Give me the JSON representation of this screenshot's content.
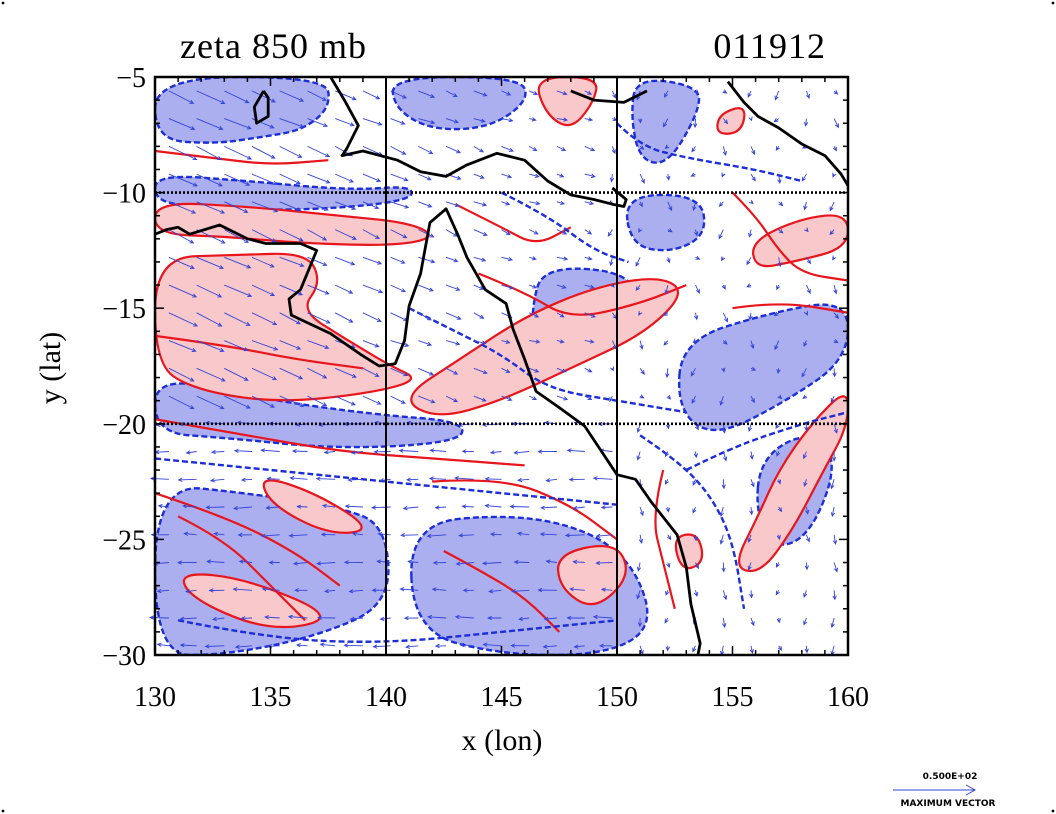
{
  "map": {
    "title": "zeta 850 mb",
    "timestamp": "011912",
    "xlabel": "x (lon)",
    "ylabel": "y (lat)",
    "xlim": [
      130,
      160
    ],
    "ylim": [
      -30,
      -5
    ],
    "xticks": [
      {
        "value": 130,
        "label": "130"
      },
      {
        "value": 135,
        "label": "135"
      },
      {
        "value": 140,
        "label": "140"
      },
      {
        "value": 145,
        "label": "145"
      },
      {
        "value": 150,
        "label": "150"
      },
      {
        "value": 155,
        "label": "155"
      },
      {
        "value": 160,
        "label": "160"
      }
    ],
    "yticks": [
      {
        "value": -5,
        "label": "−5"
      },
      {
        "value": -10,
        "label": "−10"
      },
      {
        "value": -15,
        "label": "−15"
      },
      {
        "value": -20,
        "label": "−20"
      },
      {
        "value": -25,
        "label": "−25"
      },
      {
        "value": -30,
        "label": "−30"
      }
    ],
    "grid_lon": [
      140,
      150
    ],
    "grid_lat": [
      -10,
      -20
    ],
    "legend": {
      "value_label": "0.500E+02",
      "label": "MAXIMUM VECTOR"
    },
    "colors": {
      "negative_fill": "#abaff0",
      "positive_fill": "#f8c8ca",
      "positive_contour": "#e8161c",
      "negative_contour": "#1c2ed8",
      "vector": "#3343d9",
      "coastline": "#000000"
    },
    "coastlines": [
      [
        [
          130,
          -11.8
        ],
        [
          130.5,
          -11.6
        ],
        [
          131,
          -11.5
        ],
        [
          131.5,
          -11.8
        ],
        [
          132.8,
          -11.4
        ],
        [
          134,
          -12
        ],
        [
          134.8,
          -12.2
        ],
        [
          136.3,
          -12.2
        ],
        [
          137,
          -12.5
        ],
        [
          136.3,
          -14.2
        ],
        [
          135.8,
          -14.6
        ],
        [
          135.9,
          -15.3
        ],
        [
          137.6,
          -16.1
        ],
        [
          138.9,
          -17
        ],
        [
          139.7,
          -17.5
        ],
        [
          140.4,
          -17.4
        ],
        [
          140.8,
          -16.4
        ],
        [
          141,
          -14.9
        ],
        [
          141.5,
          -13.5
        ],
        [
          141.9,
          -11.3
        ],
        [
          142.6,
          -10.7
        ],
        [
          143.1,
          -11.8
        ],
        [
          143.5,
          -12.8
        ],
        [
          144.3,
          -14.2
        ],
        [
          145.2,
          -14.8
        ],
        [
          145.5,
          -15.9
        ],
        [
          146,
          -17.2
        ],
        [
          146.5,
          -18.6
        ],
        [
          147.5,
          -19.3
        ],
        [
          148.6,
          -20.1
        ],
        [
          149.2,
          -21
        ],
        [
          150,
          -22.2
        ],
        [
          150.8,
          -22.4
        ],
        [
          151.5,
          -23.4
        ],
        [
          152.6,
          -24.8
        ],
        [
          153,
          -26.2
        ],
        [
          153.2,
          -27.8
        ],
        [
          153.6,
          -29.5
        ],
        [
          153.5,
          -30
        ]
      ],
      [
        [
          134.7,
          -5.6
        ],
        [
          134.3,
          -6.3
        ],
        [
          134.4,
          -7
        ],
        [
          134.9,
          -6.7
        ],
        [
          134.9,
          -5.9
        ],
        [
          134.7,
          -5.6
        ]
      ],
      [
        [
          137.6,
          -5
        ],
        [
          138.2,
          -6
        ],
        [
          138.8,
          -7.1
        ],
        [
          138.3,
          -8.1
        ],
        [
          138.1,
          -8.4
        ],
        [
          139,
          -8.2
        ],
        [
          140.5,
          -8.6
        ],
        [
          141.5,
          -9.1
        ],
        [
          142.6,
          -9.3
        ],
        [
          143.5,
          -8.8
        ],
        [
          144.8,
          -8.3
        ],
        [
          146,
          -8.6
        ],
        [
          147,
          -9.5
        ],
        [
          148,
          -10.1
        ],
        [
          149,
          -10.3
        ],
        [
          149.8,
          -10.5
        ],
        [
          150.3,
          -10.6
        ],
        [
          150.4,
          -10.3
        ],
        [
          149.8,
          -9.8
        ]
      ],
      [
        [
          148,
          -5.6
        ],
        [
          149,
          -6
        ],
        [
          150.3,
          -6.1
        ],
        [
          151.3,
          -5.6
        ]
      ],
      [
        [
          154.8,
          -5.2
        ],
        [
          155.5,
          -6.1
        ],
        [
          156.1,
          -6.7
        ],
        [
          157,
          -7.2
        ],
        [
          158,
          -7.9
        ],
        [
          159,
          -8.4
        ],
        [
          159.7,
          -9.2
        ],
        [
          160,
          -9.7
        ]
      ]
    ],
    "negative_regions": [
      [
        [
          130,
          -5
        ],
        [
          137.4,
          -5
        ],
        [
          137.6,
          -6.3
        ],
        [
          136.4,
          -7.3
        ],
        [
          134.6,
          -7.6
        ],
        [
          132.5,
          -7.9
        ],
        [
          130,
          -7.7
        ]
      ],
      [
        [
          140.2,
          -5
        ],
        [
          145.8,
          -5
        ],
        [
          146.2,
          -6
        ],
        [
          144.5,
          -7.2
        ],
        [
          142,
          -7.3
        ],
        [
          140.4,
          -6.4
        ]
      ],
      [
        [
          130,
          -9.2
        ],
        [
          134,
          -9.5
        ],
        [
          138.5,
          -9.9
        ],
        [
          141.2,
          -9.7
        ],
        [
          141,
          -10.4
        ],
        [
          136,
          -10.8
        ],
        [
          132,
          -10.6
        ],
        [
          130,
          -10.4
        ]
      ],
      [
        [
          150.8,
          -5
        ],
        [
          153.6,
          -5.4
        ],
        [
          153.5,
          -6.6
        ],
        [
          152.2,
          -8.8
        ],
        [
          151,
          -8.6
        ],
        [
          150.6,
          -6.8
        ]
      ],
      [
        [
          150.3,
          -10.1
        ],
        [
          153.6,
          -10.1
        ],
        [
          153.9,
          -11.8
        ],
        [
          152.4,
          -12.6
        ],
        [
          150.6,
          -12.3
        ]
      ],
      [
        [
          146.8,
          -13.2
        ],
        [
          150.4,
          -13.4
        ],
        [
          151,
          -14.9
        ],
        [
          149.3,
          -16
        ],
        [
          148,
          -17.6
        ],
        [
          146.4,
          -17.1
        ],
        [
          146.3,
          -15
        ]
      ],
      [
        [
          152.8,
          -16.4
        ],
        [
          156.6,
          -15.2
        ],
        [
          160,
          -14.6
        ],
        [
          160,
          -17.2
        ],
        [
          157.2,
          -19.1
        ],
        [
          154.2,
          -20.6
        ],
        [
          152.6,
          -19.4
        ]
      ],
      [
        [
          130,
          -17.9
        ],
        [
          134.5,
          -18.9
        ],
        [
          139.5,
          -19.6
        ],
        [
          143.4,
          -19.9
        ],
        [
          143.2,
          -20.8
        ],
        [
          138,
          -21.1
        ],
        [
          133,
          -20.6
        ],
        [
          130,
          -20.4
        ]
      ],
      [
        [
          130,
          -22.6
        ],
        [
          134,
          -23
        ],
        [
          138,
          -23.6
        ],
        [
          140,
          -24.4
        ],
        [
          140.2,
          -27.8
        ],
        [
          137,
          -29.2
        ],
        [
          133,
          -30
        ],
        [
          130,
          -30
        ]
      ],
      [
        [
          141,
          -24.3
        ],
        [
          145.5,
          -23.9
        ],
        [
          148.8,
          -24.6
        ],
        [
          150.8,
          -26.2
        ],
        [
          151.6,
          -28.8
        ],
        [
          149.5,
          -30
        ],
        [
          145,
          -30
        ],
        [
          141.2,
          -29
        ]
      ],
      [
        [
          156.2,
          -21.5
        ],
        [
          158.2,
          -20.3
        ],
        [
          159.6,
          -21.5
        ],
        [
          158.5,
          -24.6
        ],
        [
          157,
          -25.5
        ],
        [
          156,
          -24
        ]
      ]
    ],
    "positive_regions": [
      [
        [
          130,
          -10.4
        ],
        [
          134,
          -10.6
        ],
        [
          138,
          -11
        ],
        [
          141,
          -11.3
        ],
        [
          142.2,
          -11.9
        ],
        [
          140.5,
          -12.3
        ],
        [
          136.5,
          -12.2
        ],
        [
          133,
          -11.9
        ],
        [
          130,
          -11.8
        ]
      ],
      [
        [
          130,
          -12.8
        ],
        [
          133.5,
          -12.7
        ],
        [
          136.6,
          -12.6
        ],
        [
          137.2,
          -13.9
        ],
        [
          136.3,
          -15.1
        ],
        [
          138.2,
          -16.3
        ],
        [
          140.2,
          -17.5
        ],
        [
          141.5,
          -18.1
        ],
        [
          139.2,
          -18.7
        ],
        [
          135.2,
          -19.1
        ],
        [
          131.6,
          -18.5
        ],
        [
          130,
          -17.4
        ]
      ],
      [
        [
          140.6,
          -18.9
        ],
        [
          143.2,
          -17.2
        ],
        [
          146.1,
          -15.3
        ],
        [
          149,
          -14.1
        ],
        [
          151.8,
          -13.6
        ],
        [
          153,
          -14.3
        ],
        [
          151.2,
          -16.1
        ],
        [
          148.2,
          -17.5
        ],
        [
          145,
          -19
        ],
        [
          142.2,
          -19.8
        ]
      ],
      [
        [
          155.8,
          -12.1
        ],
        [
          158,
          -11.1
        ],
        [
          160,
          -10.9
        ],
        [
          160,
          -12.4
        ],
        [
          157.6,
          -13
        ],
        [
          156,
          -13.3
        ]
      ],
      [
        [
          160,
          -18.4
        ],
        [
          158.4,
          -20
        ],
        [
          157,
          -22
        ],
        [
          156.1,
          -24
        ],
        [
          155,
          -26.2
        ],
        [
          156.2,
          -26.5
        ],
        [
          157.6,
          -24.6
        ],
        [
          158.9,
          -22.1
        ],
        [
          160,
          -20.1
        ]
      ],
      [
        [
          146.4,
          -5
        ],
        [
          149.2,
          -5
        ],
        [
          149,
          -6.1
        ],
        [
          148,
          -7.3
        ],
        [
          146.9,
          -6.6
        ]
      ],
      [
        [
          154.4,
          -6.6
        ],
        [
          155.6,
          -6.2
        ],
        [
          155.4,
          -7.4
        ],
        [
          154.3,
          -7.5
        ]
      ],
      [
        [
          147.4,
          -25.6
        ],
        [
          150,
          -25.1
        ],
        [
          150.6,
          -26.6
        ],
        [
          149,
          -28.1
        ],
        [
          147.5,
          -27.1
        ]
      ],
      [
        [
          131,
          -26.4
        ],
        [
          134,
          -26.7
        ],
        [
          138,
          -28.4
        ],
        [
          135,
          -29
        ],
        [
          131.6,
          -27.6
        ]
      ],
      [
        [
          152.4,
          -24.9
        ],
        [
          153.5,
          -24.7
        ],
        [
          153.8,
          -26
        ],
        [
          152.8,
          -26.4
        ]
      ],
      [
        [
          134.5,
          -22.2
        ],
        [
          137,
          -23
        ],
        [
          139.5,
          -24.6
        ],
        [
          137.5,
          -24.8
        ],
        [
          135,
          -23.5
        ]
      ]
    ],
    "positive_contours": [
      [
        [
          130,
          -16.2
        ],
        [
          133,
          -16.6
        ],
        [
          136,
          -17.2
        ],
        [
          139,
          -17.6
        ]
      ],
      [
        [
          130,
          -19.8
        ],
        [
          134,
          -20.5
        ],
        [
          138,
          -21.2
        ],
        [
          142,
          -21.5
        ],
        [
          146,
          -21.8
        ]
      ],
      [
        [
          130,
          -23
        ],
        [
          133,
          -24
        ],
        [
          136,
          -25.5
        ],
        [
          138,
          -27
        ]
      ],
      [
        [
          142,
          -22.5
        ],
        [
          145,
          -22.3
        ],
        [
          148,
          -23.5
        ],
        [
          150,
          -25
        ]
      ],
      [
        [
          152,
          -22
        ],
        [
          151.5,
          -24
        ],
        [
          152,
          -26
        ],
        [
          152.5,
          -28
        ]
      ],
      [
        [
          143,
          -10.5
        ],
        [
          145,
          -11.5
        ],
        [
          146.5,
          -12.3
        ],
        [
          148,
          -11.5
        ]
      ],
      [
        [
          144,
          -13.5
        ],
        [
          146,
          -14.3
        ],
        [
          148,
          -15.5
        ],
        [
          151,
          -14.8
        ],
        [
          153,
          -14
        ]
      ],
      [
        [
          155,
          -10
        ],
        [
          156,
          -11
        ],
        [
          157,
          -12.5
        ],
        [
          158,
          -13.5
        ],
        [
          160,
          -13.8
        ]
      ],
      [
        [
          155,
          -15
        ],
        [
          157,
          -14.7
        ],
        [
          160,
          -15.2
        ]
      ],
      [
        [
          131,
          -24
        ],
        [
          133,
          -25
        ],
        [
          135,
          -27
        ],
        [
          136.5,
          -28.5
        ]
      ],
      [
        [
          130,
          -8.2
        ],
        [
          132.5,
          -8.5
        ],
        [
          135,
          -8.8
        ],
        [
          137.5,
          -8.6
        ]
      ],
      [
        [
          142.5,
          -25.5
        ],
        [
          144,
          -26.3
        ],
        [
          146,
          -27.5
        ],
        [
          147.5,
          -29
        ]
      ]
    ],
    "negative_contours": [
      [
        [
          130,
          -21.5
        ],
        [
          135,
          -22
        ],
        [
          140,
          -22.5
        ],
        [
          145,
          -23
        ],
        [
          150,
          -23.5
        ]
      ],
      [
        [
          141,
          -15
        ],
        [
          143,
          -16
        ],
        [
          145,
          -17
        ],
        [
          147,
          -18.5
        ],
        [
          150,
          -19
        ],
        [
          153,
          -19.5
        ]
      ],
      [
        [
          145,
          -10
        ],
        [
          147,
          -11
        ],
        [
          149,
          -12.5
        ],
        [
          150.5,
          -13
        ]
      ],
      [
        [
          150,
          -7
        ],
        [
          151,
          -8
        ],
        [
          153,
          -8.5
        ],
        [
          156,
          -9
        ],
        [
          158,
          -9.5
        ]
      ],
      [
        [
          131,
          -28.5
        ],
        [
          135,
          -29.3
        ],
        [
          140,
          -29.5
        ],
        [
          145,
          -29
        ],
        [
          150,
          -28.5
        ]
      ],
      [
        [
          153,
          -22
        ],
        [
          155,
          -21
        ],
        [
          158,
          -20
        ],
        [
          160,
          -19.5
        ]
      ],
      [
        [
          151,
          -20.5
        ],
        [
          152.5,
          -21.5
        ],
        [
          154,
          -23
        ],
        [
          155,
          -25
        ],
        [
          155.5,
          -28
        ]
      ]
    ]
  }
}
